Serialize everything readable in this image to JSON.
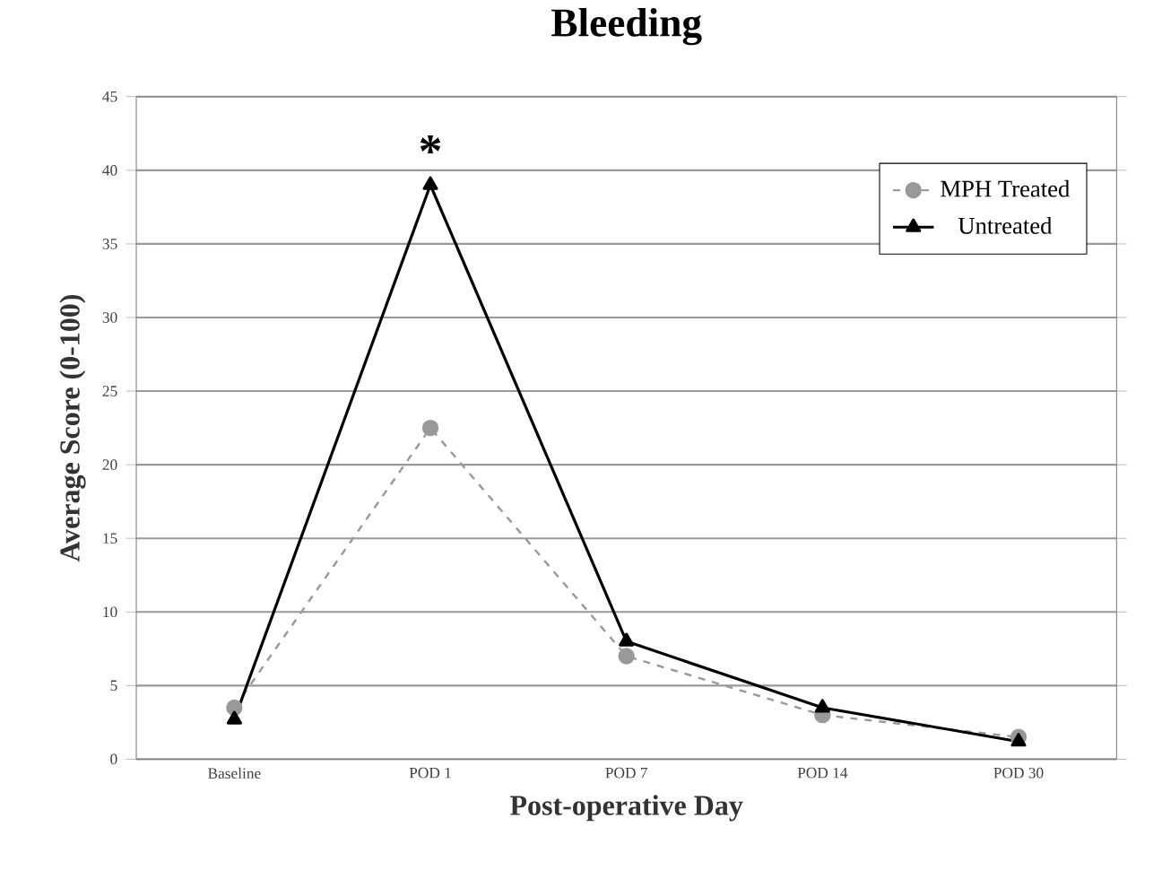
{
  "chart_data": {
    "type": "line",
    "title": "Bleeding",
    "xlabel": "Post-operative Day",
    "ylabel": "Average Score (0-100)",
    "categories": [
      "Baseline",
      "POD 1",
      "POD 7",
      "POD 14",
      "POD 30"
    ],
    "series": [
      {
        "name": "MPH Treated",
        "color": "#999999",
        "marker": "circle",
        "line_style": "dashed",
        "values": [
          3.5,
          22.5,
          7,
          3,
          1.5
        ]
      },
      {
        "name": "Untreated",
        "color": "#000000",
        "marker": "triangle",
        "line_style": "solid",
        "values": [
          2.7,
          39,
          8,
          3.5,
          1.2
        ]
      }
    ],
    "ylim": [
      0,
      45
    ],
    "yticks": [
      0,
      5,
      10,
      15,
      20,
      25,
      30,
      35,
      40,
      45
    ],
    "grid": "y",
    "legend": "top right",
    "annotations": [
      "*"
    ]
  }
}
